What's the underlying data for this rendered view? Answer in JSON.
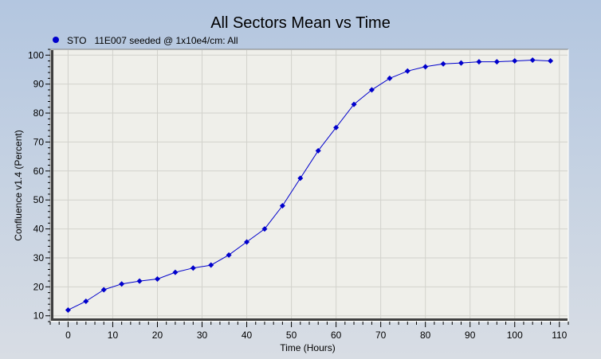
{
  "chart_data": {
    "type": "scatter",
    "title": "All Sectors Mean vs Time",
    "xlabel": "Time (Hours)",
    "ylabel": "Confluence v1.4 (Percent)",
    "xlim": [
      -4,
      112
    ],
    "ylim": [
      8,
      102
    ],
    "xticks": [
      0,
      10,
      20,
      30,
      40,
      50,
      60,
      70,
      80,
      90,
      100,
      110
    ],
    "yticks": [
      10,
      20,
      30,
      40,
      50,
      60,
      70,
      80,
      90,
      100
    ],
    "grid": true,
    "legend_position": "top-left",
    "series": [
      {
        "name": "STO   11E007 seeded @ 1x10e4/cm: All",
        "color": "#0000cc",
        "marker": "diamond",
        "line": true,
        "x": [
          0,
          4,
          8,
          12,
          16,
          20,
          24,
          28,
          32,
          36,
          40,
          44,
          48,
          52,
          56,
          60,
          64,
          68,
          72,
          76,
          80,
          84,
          88,
          92,
          96,
          100,
          104,
          108
        ],
        "y": [
          12,
          15,
          19,
          21,
          22,
          22.7,
          25,
          26.5,
          27.5,
          31,
          35.5,
          40,
          48,
          57.5,
          67,
          75,
          83,
          88,
          92,
          94.5,
          96,
          97,
          97.3,
          97.7,
          97.7,
          98,
          98.3,
          98
        ]
      }
    ]
  }
}
